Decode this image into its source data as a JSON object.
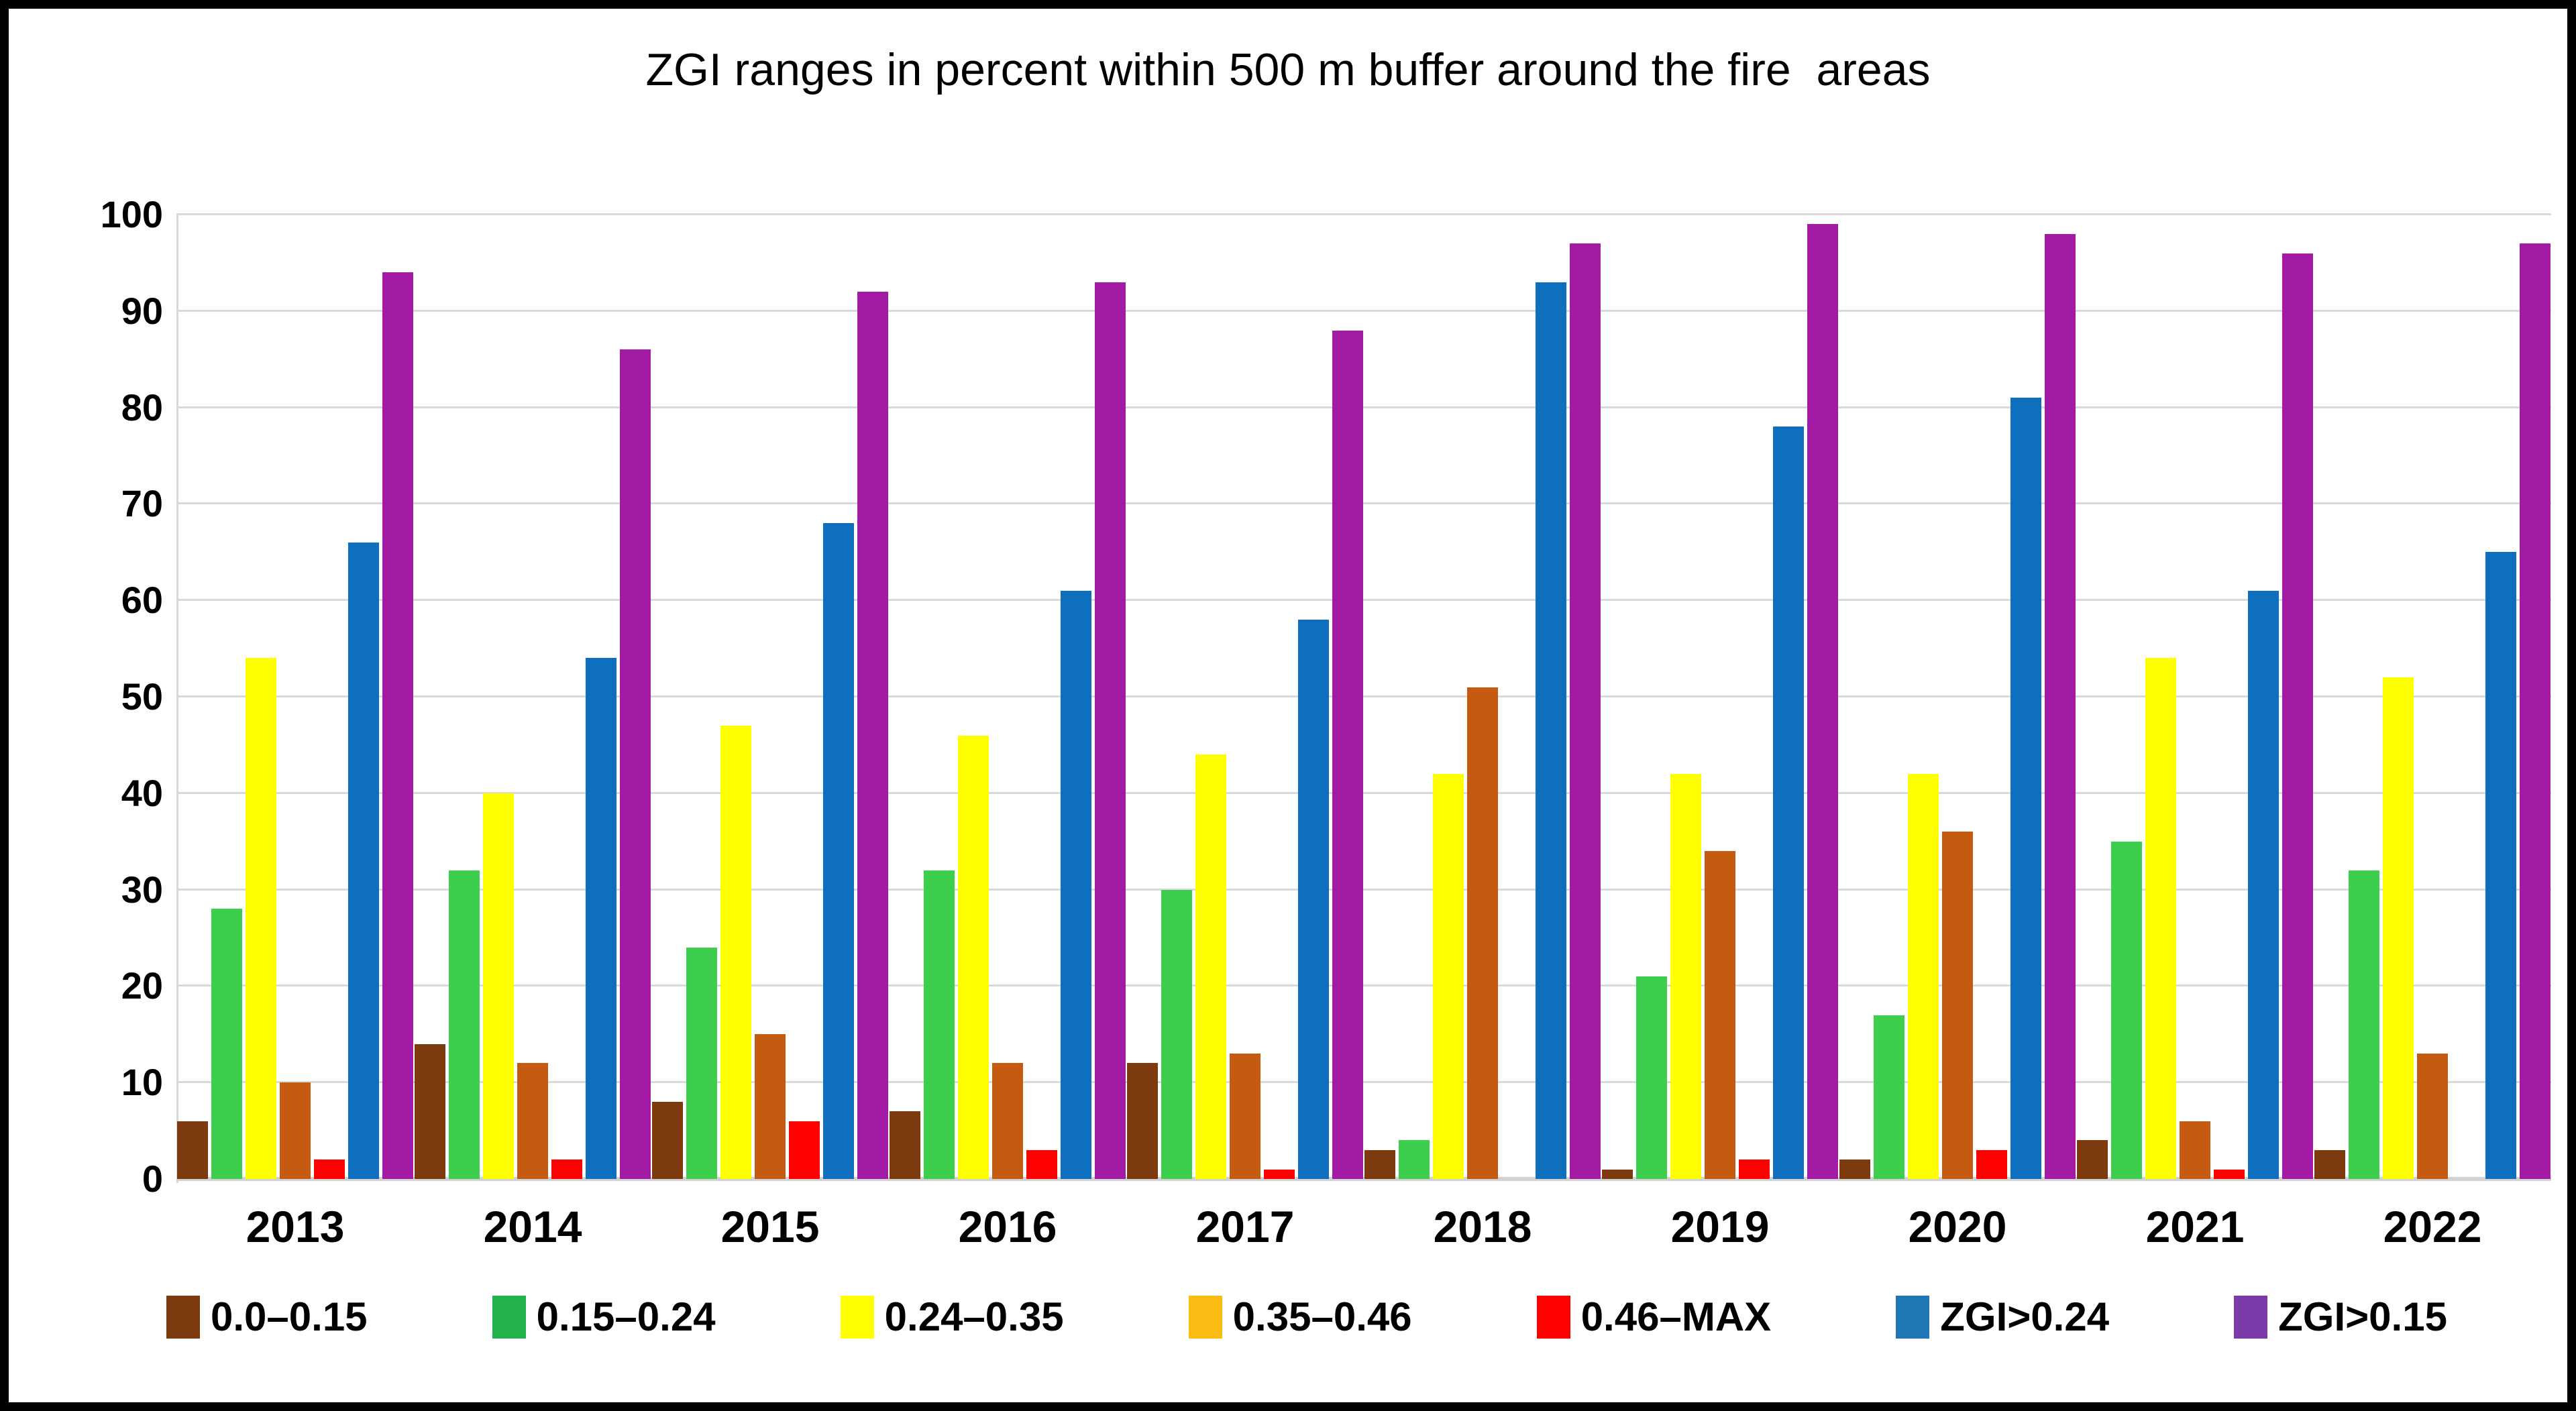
{
  "title": "ZGI ranges in percent within 500 m buffer around the fire  areas",
  "y_axis": {
    "ticks": [
      100,
      90,
      80,
      70,
      60,
      50,
      40,
      30,
      20,
      10,
      0
    ]
  },
  "chart_data": {
    "type": "bar",
    "title": "ZGI ranges in percent within 500 m buffer around the fire  areas",
    "xlabel": "",
    "ylabel": "",
    "ylim": [
      0,
      100
    ],
    "grid": true,
    "legend_position": "bottom",
    "categories": [
      "2013",
      "2014",
      "2015",
      "2016",
      "2017",
      "2018",
      "2019",
      "2020",
      "2021",
      "2022"
    ],
    "series": [
      {
        "name": "0.0–0.15",
        "bar_color": "#7D3A0E",
        "legend_color": "#7D3A0E",
        "values": [
          6,
          14,
          8,
          7,
          12,
          3,
          1,
          2,
          4,
          3
        ]
      },
      {
        "name": "0.15–0.24",
        "bar_color": "#3DCE4E",
        "legend_color": "#22B14C",
        "values": [
          28,
          32,
          24,
          32,
          30,
          4,
          21,
          17,
          35,
          32
        ]
      },
      {
        "name": "0.24–0.35",
        "bar_color": "#FFFF00",
        "legend_color": "#FFFF00",
        "values": [
          54,
          40,
          47,
          46,
          44,
          42,
          42,
          42,
          54,
          52
        ]
      },
      {
        "name": "0.35–0.46",
        "bar_color": "#C55A11",
        "legend_color": "#FCBB13",
        "values": [
          10,
          12,
          15,
          12,
          13,
          51,
          34,
          36,
          6,
          13
        ]
      },
      {
        "name": "0.46–MAX",
        "bar_color": "#FF0000",
        "legend_color": "#FF0000",
        "values": [
          2,
          2,
          6,
          3,
          1,
          0,
          2,
          3,
          1,
          0
        ]
      },
      {
        "name": "ZGI>0.24",
        "bar_color": "#0D6FBE",
        "legend_color": "#2077B5",
        "values": [
          66,
          54,
          68,
          61,
          58,
          93,
          78,
          81,
          61,
          65
        ]
      },
      {
        "name": "ZGI>0.15",
        "bar_color": "#A31AA5",
        "legend_color": "#7A3BA8",
        "values": [
          94,
          86,
          92,
          93,
          88,
          97,
          99,
          98,
          96,
          97
        ]
      }
    ],
    "colors": {
      "gridline": "#D9D9D9",
      "axis_text": "#000000",
      "background": "#FFFFFF",
      "border": "#000000"
    }
  }
}
